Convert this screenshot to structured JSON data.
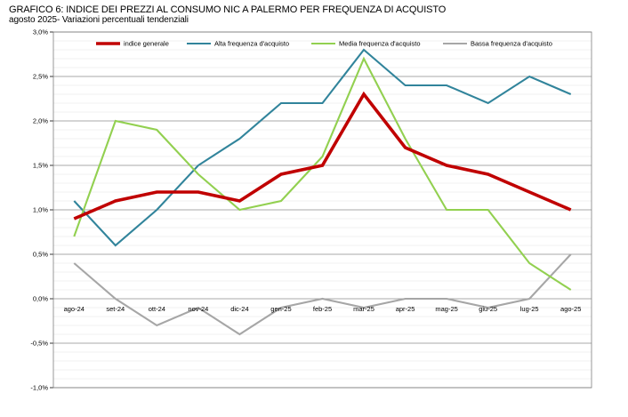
{
  "title": "GRAFICO 6: INDICE DEI PREZZI AL CONSUMO NIC A PALERMO PER FREQUENZA DI ACQUISTO",
  "subtitle": "agosto 2025- Variazioni percentuali tendenziali",
  "chart_data": {
    "type": "line",
    "title": "GRAFICO 6: INDICE DEI PREZZI AL CONSUMO NIC A PALERMO PER FREQUENZA DI ACQUISTO",
    "subtitle": "agosto 2025- Variazioni percentuali tendenziali",
    "xlabel": "",
    "ylabel": "",
    "categories": [
      "ago-24",
      "set-24",
      "ott-24",
      "nov-24",
      "dic-24",
      "gen-25",
      "feb-25",
      "mar-25",
      "apr-25",
      "mag-25",
      "giu-25",
      "lug-25",
      "ago-25"
    ],
    "ylim": [
      -1.0,
      3.0
    ],
    "yticks": [
      3.0,
      2.5,
      2.0,
      1.5,
      1.0,
      0.5,
      0.0,
      -0.5,
      -1.0
    ],
    "ytick_labels": [
      "3,0%",
      "2,5%",
      "2,0%",
      "1,5%",
      "1,0%",
      "0,5%",
      "0,0%",
      "-0,5%",
      "-1,0%"
    ],
    "grid": true,
    "legend_position": "top",
    "series": [
      {
        "name": "indice generale",
        "color": "#c00000",
        "values": [
          0.9,
          1.1,
          1.2,
          1.2,
          1.1,
          1.4,
          1.5,
          2.3,
          1.7,
          1.5,
          1.4,
          1.2,
          1.0
        ]
      },
      {
        "name": "Alta frequenza d'acquisto",
        "color": "#31849b",
        "values": [
          1.1,
          0.6,
          1.0,
          1.5,
          1.8,
          2.2,
          2.2,
          2.8,
          2.4,
          2.4,
          2.2,
          2.5,
          2.3
        ]
      },
      {
        "name": "Media frequenza d'acquisto",
        "color": "#92d050",
        "values": [
          0.7,
          2.0,
          1.9,
          1.4,
          1.0,
          1.1,
          1.6,
          2.7,
          1.8,
          1.0,
          1.0,
          0.4,
          0.1
        ]
      },
      {
        "name": "Bassa frequenza d'acquisto",
        "color": "#a6a6a6",
        "values": [
          0.4,
          0.0,
          -0.3,
          -0.1,
          -0.4,
          -0.1,
          0.0,
          -0.1,
          0.0,
          0.0,
          -0.1,
          0.0,
          0.5
        ]
      }
    ]
  }
}
